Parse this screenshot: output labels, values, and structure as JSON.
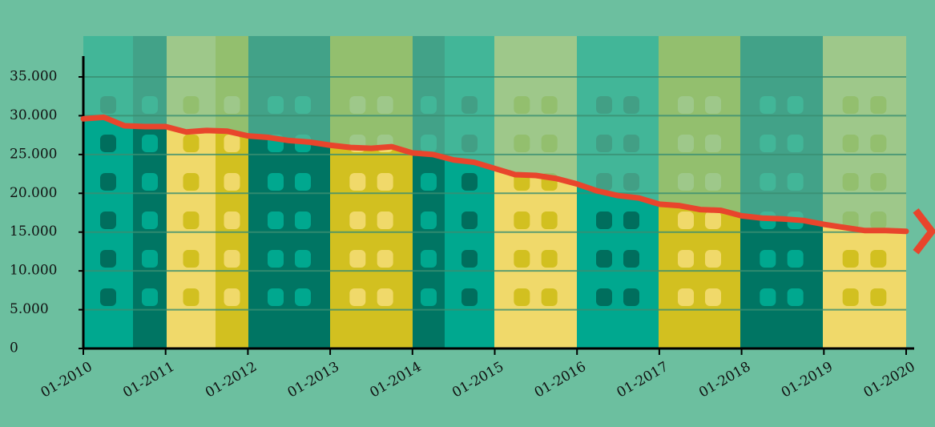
{
  "chart_data": {
    "type": "line",
    "x": [
      "01-2010",
      "04-2010",
      "07-2010",
      "10-2010",
      "01-2011",
      "04-2011",
      "07-2011",
      "10-2011",
      "01-2012",
      "04-2012",
      "07-2012",
      "10-2012",
      "01-2013",
      "04-2013",
      "07-2013",
      "10-2013",
      "01-2014",
      "04-2014",
      "07-2014",
      "10-2014",
      "01-2015",
      "04-2015",
      "07-2015",
      "10-2015",
      "01-2016",
      "04-2016",
      "07-2016",
      "10-2016",
      "01-2017",
      "04-2017",
      "07-2017",
      "10-2017",
      "01-2018",
      "04-2018",
      "07-2018",
      "10-2018",
      "01-2019",
      "04-2019",
      "07-2019",
      "10-2019",
      "01-2020"
    ],
    "values": [
      29600,
      29800,
      28700,
      28600,
      28600,
      27900,
      28100,
      28000,
      27400,
      27200,
      26800,
      26600,
      26200,
      25900,
      25800,
      26000,
      25200,
      25000,
      24300,
      24000,
      23200,
      22400,
      22300,
      21900,
      21200,
      20300,
      19700,
      19400,
      18600,
      18400,
      17900,
      17800,
      17100,
      16800,
      16700,
      16500,
      16000,
      15600,
      15200,
      15200,
      15100
    ],
    "color": "#e8452c",
    "xlim": [
      "01-2010",
      "01-2020"
    ],
    "xticks": [
      "01-2010",
      "01-2011",
      "01-2012",
      "01-2013",
      "01-2014",
      "01-2015",
      "01-2016",
      "01-2017",
      "01-2018",
      "01-2019",
      "01-2020"
    ],
    "ylim": [
      0,
      35000
    ],
    "yticks": [
      0,
      {
        "value": 5000,
        "label": "5.000"
      },
      {
        "value": 10000,
        "label": "10.000"
      },
      {
        "value": 15000,
        "label": "15.000"
      },
      {
        "value": 20000,
        "label": "20.000"
      },
      {
        "value": 25000,
        "label": "25.000"
      },
      {
        "value": 30000,
        "label": "30.000"
      },
      {
        "value": 35000,
        "label": "35.000"
      }
    ],
    "grid": true
  }
}
